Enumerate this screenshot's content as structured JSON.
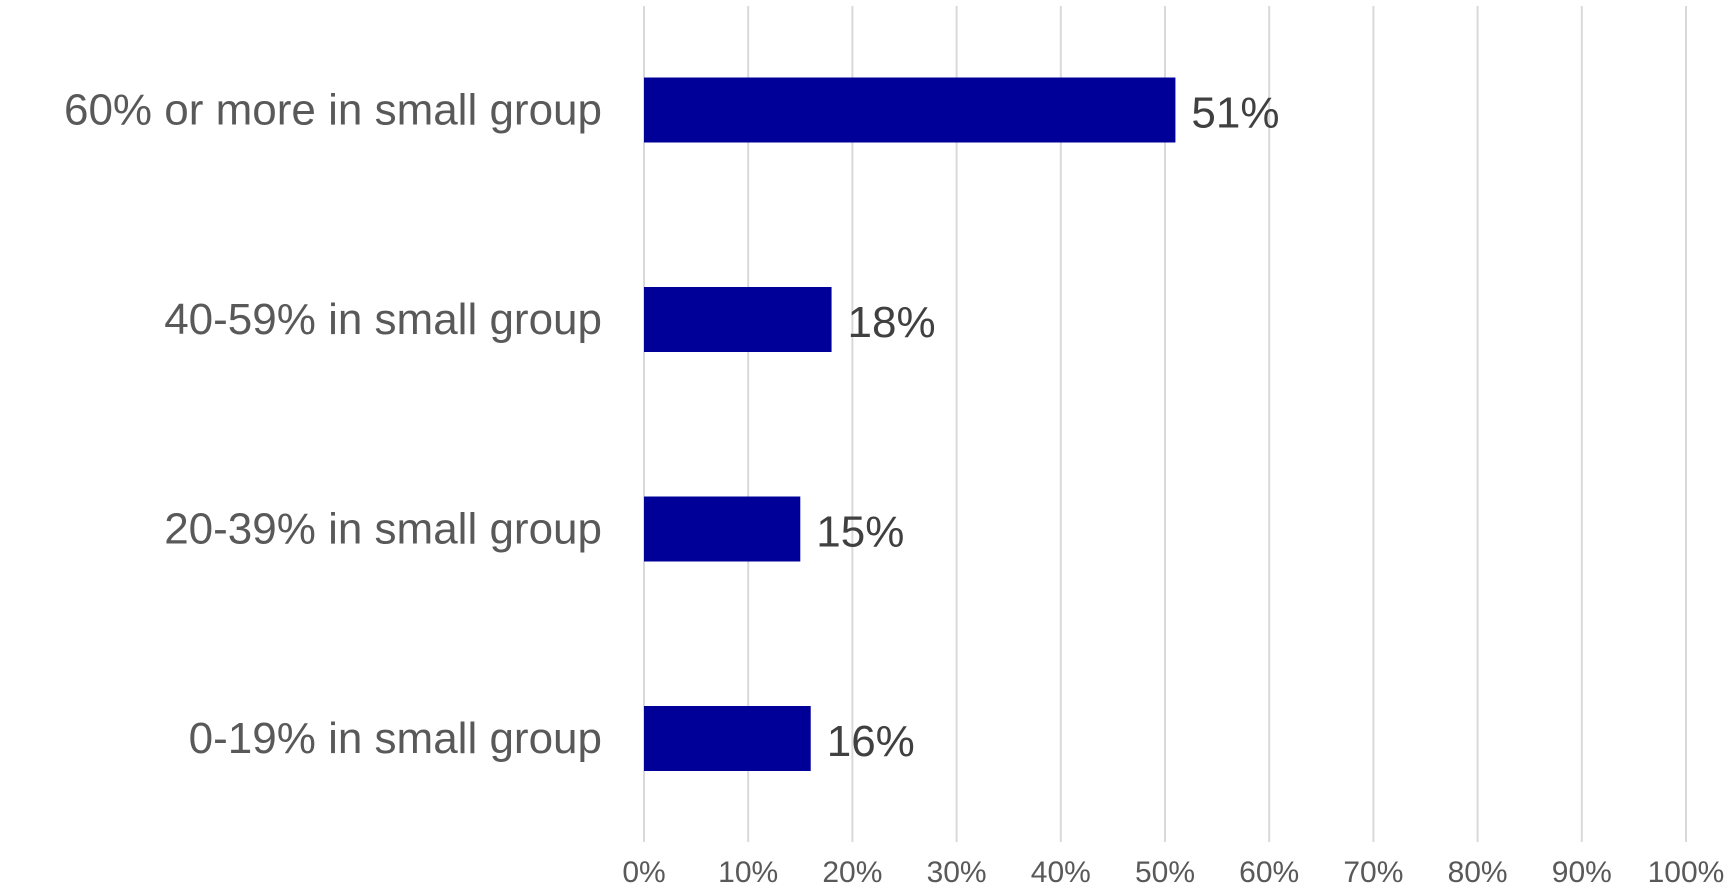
{
  "chart_data": {
    "type": "bar",
    "orientation": "horizontal",
    "categories": [
      "60% or more in small group",
      "40-59% in small group",
      "20-39% in small group",
      "0-19% in small group"
    ],
    "values": [
      51,
      18,
      15,
      16
    ],
    "data_labels": [
      "51%",
      "18%",
      "15%",
      "16%"
    ],
    "xlim": [
      0,
      100
    ],
    "x_ticks": [
      0,
      10,
      20,
      30,
      40,
      50,
      60,
      70,
      80,
      90,
      100
    ],
    "x_tick_labels": [
      "0%",
      "10%",
      "20%",
      "30%",
      "40%",
      "50%",
      "60%",
      "70%",
      "80%",
      "90%",
      "100%"
    ],
    "title": "",
    "xlabel": "",
    "ylabel": "",
    "grid": "vertical",
    "legend": "none",
    "bar_color": "#000099"
  }
}
